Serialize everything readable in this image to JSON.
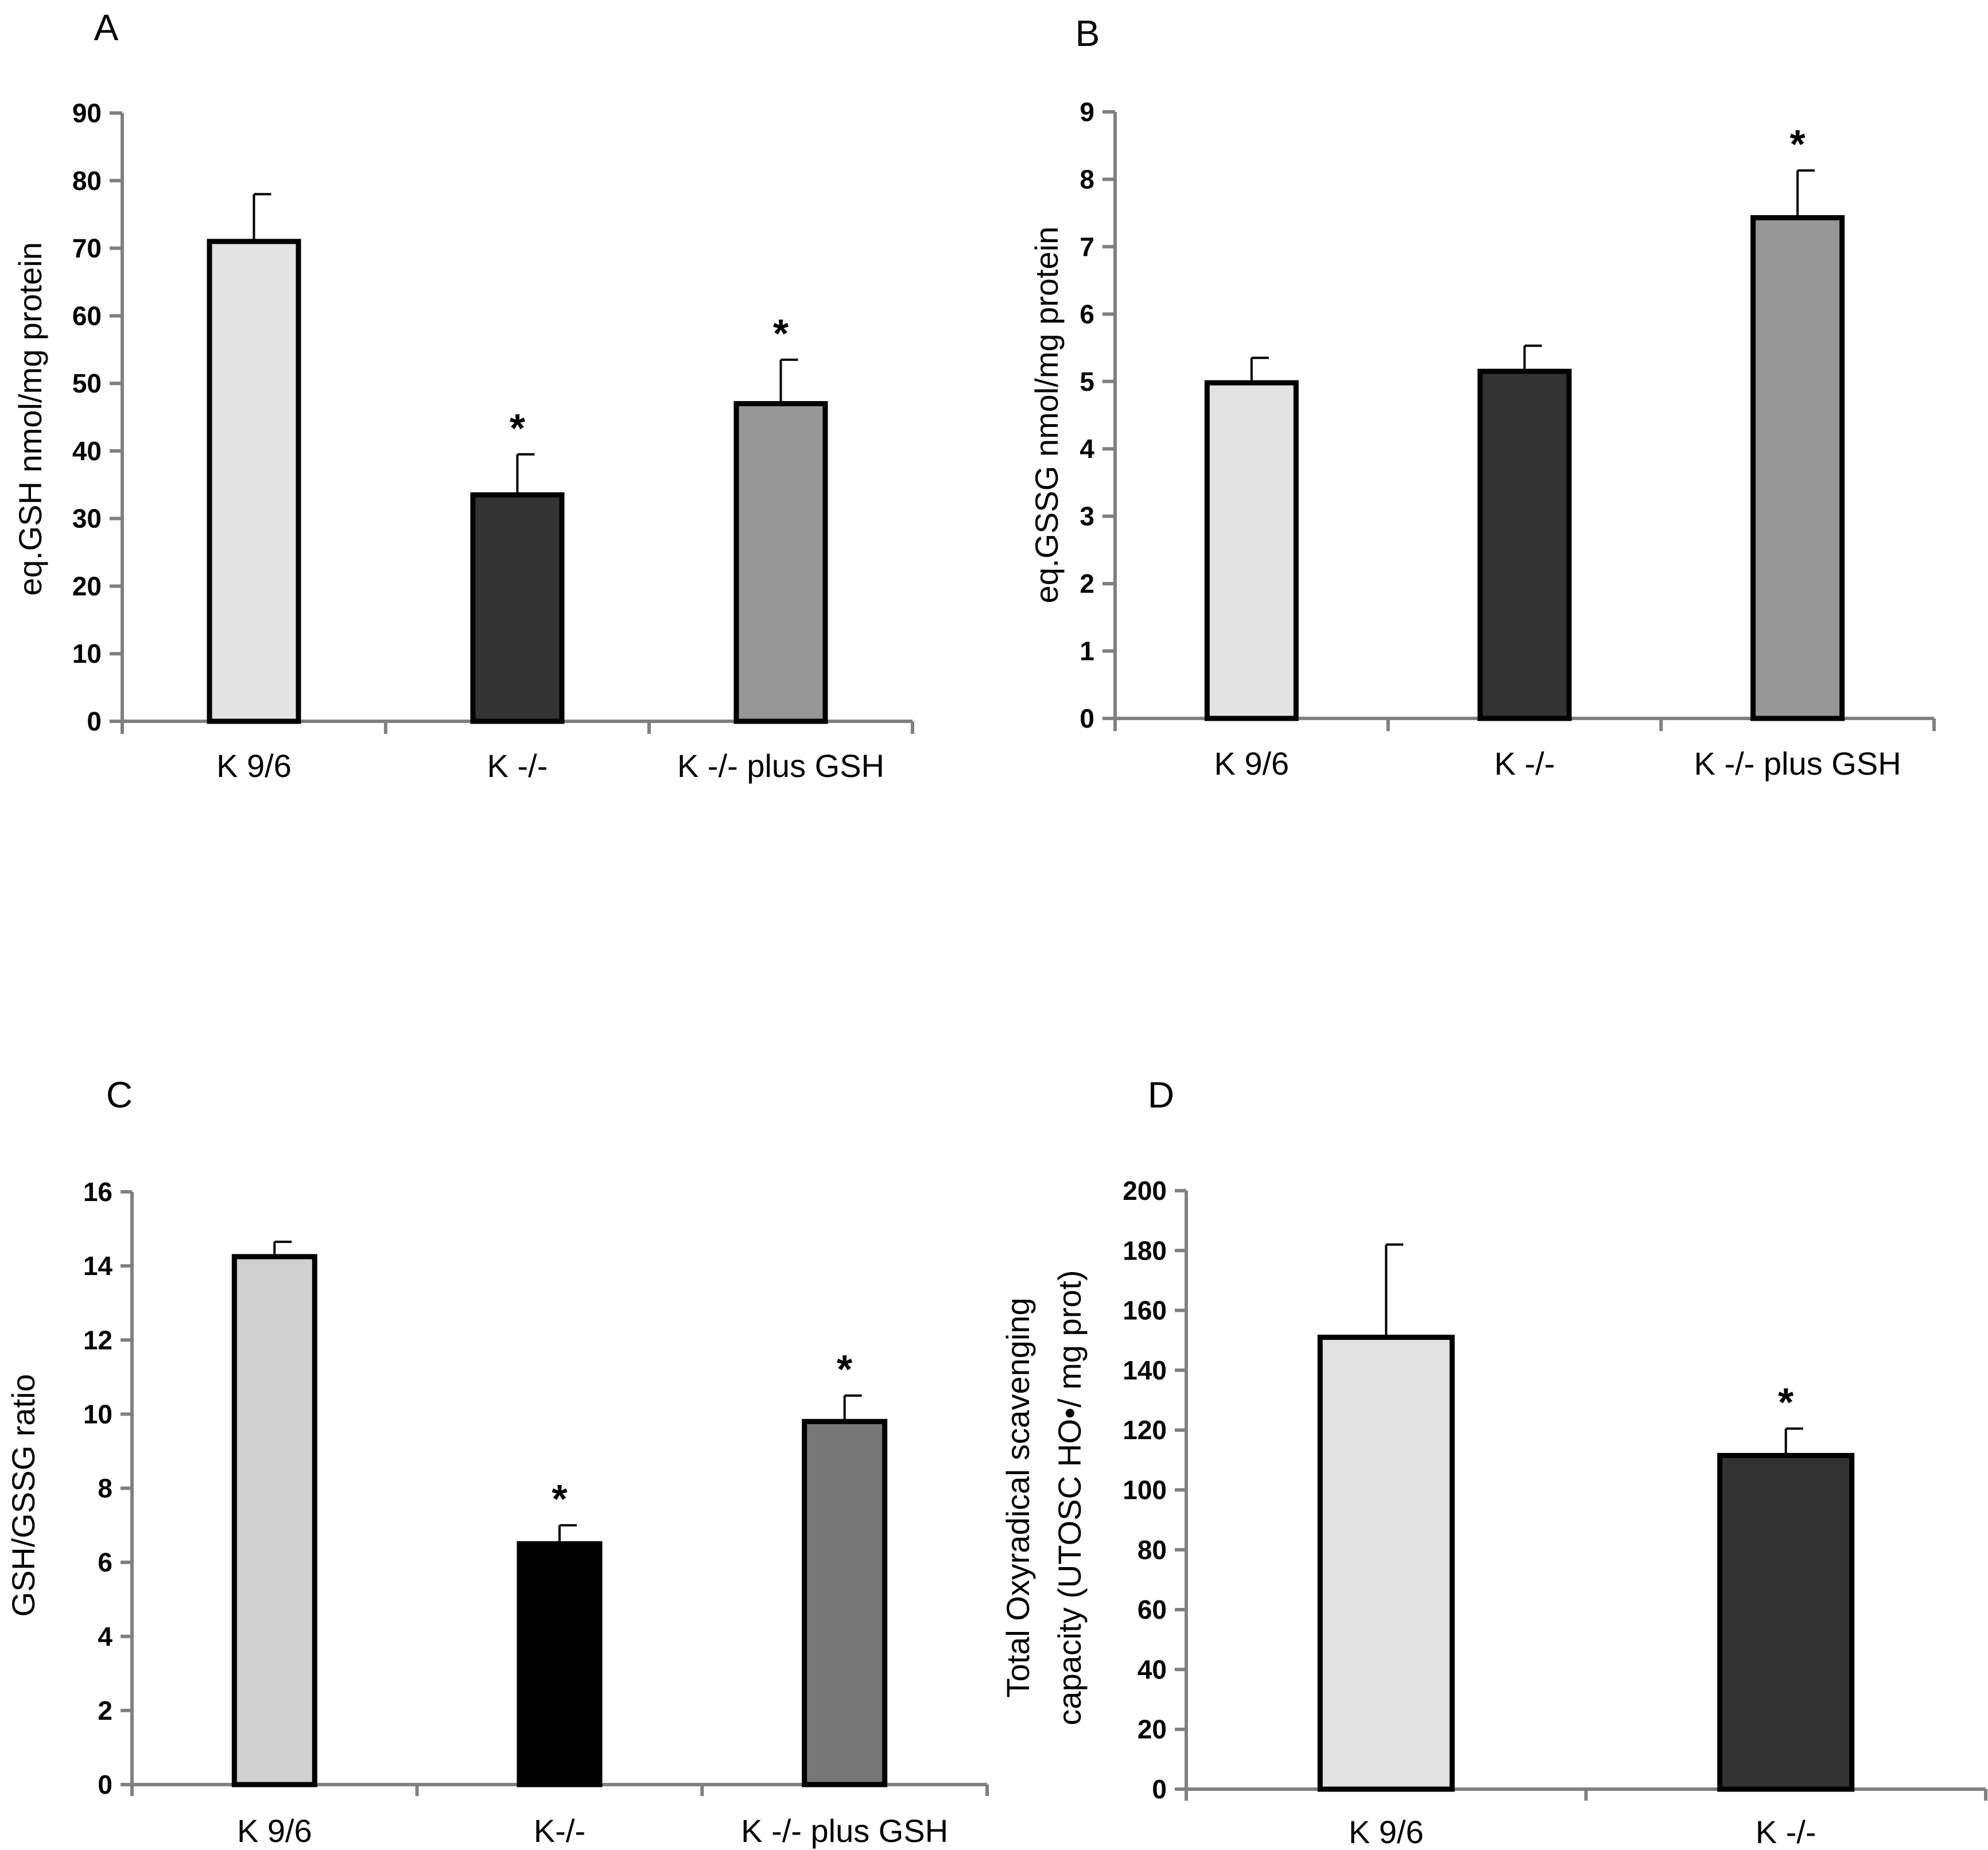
{
  "chart_data": [
    {
      "type": "bar",
      "panel": "A",
      "categories": [
        "K 9/6",
        "K -/-",
        "K -/- plus GSH"
      ],
      "values": [
        71,
        33.5,
        47
      ],
      "errors": [
        7,
        6,
        6.5
      ],
      "significance": [
        "",
        "*",
        "*"
      ],
      "colors": [
        "#e3e3e3",
        "#333333",
        "#979797"
      ],
      "xlabel": "",
      "ylabel": "eq.GSH nmol/mg protein",
      "ylim": [
        0,
        90
      ],
      "yticks": [
        0,
        10,
        20,
        30,
        40,
        50,
        60,
        70,
        80,
        90
      ],
      "grid": false
    },
    {
      "type": "bar",
      "panel": "B",
      "categories": [
        "K 9/6",
        "K -/-",
        "K -/- plus GSH"
      ],
      "values": [
        4.98,
        5.15,
        7.43
      ],
      "errors": [
        0.37,
        0.38,
        0.7
      ],
      "significance": [
        "",
        "",
        "*"
      ],
      "colors": [
        "#e3e3e3",
        "#333333",
        "#979797"
      ],
      "xlabel": "",
      "ylabel": "eq.GSSG nmol/mg protein",
      "ylim": [
        0,
        9
      ],
      "yticks": [
        0,
        1,
        2,
        3,
        4,
        5,
        6,
        7,
        8,
        9
      ],
      "grid": false
    },
    {
      "type": "bar",
      "panel": "C",
      "categories": [
        "K 9/6",
        "K-/-",
        "K -/- plus GSH"
      ],
      "values": [
        14.25,
        6.5,
        9.8
      ],
      "errors": [
        0.4,
        0.5,
        0.7
      ],
      "significance": [
        "",
        "*",
        "*"
      ],
      "colors": [
        "#d0d0d0",
        "#000000",
        "#777777"
      ],
      "xlabel": "",
      "ylabel": "GSH/GSSG ratio",
      "ylim": [
        0,
        16
      ],
      "yticks": [
        0,
        2,
        4,
        6,
        8,
        10,
        12,
        14,
        16
      ],
      "grid": false
    },
    {
      "type": "bar",
      "panel": "D",
      "categories": [
        "K 9/6",
        "K -/-"
      ],
      "values": [
        151,
        111.5
      ],
      "errors": [
        31,
        9
      ],
      "significance": [
        "",
        "*"
      ],
      "colors": [
        "#e3e3e3",
        "#333333"
      ],
      "xlabel": "",
      "ylabel": "Total Oxyradical scavenging capacity (UTOSC HO•/ mg prot)",
      "ylabel_lines": [
        "Total Oxyradical scavenging",
        "capacity (UTOSC HO•/ mg prot)"
      ],
      "ylim": [
        0,
        200
      ],
      "yticks": [
        0,
        20,
        40,
        60,
        80,
        100,
        120,
        140,
        160,
        180,
        200
      ],
      "grid": false
    }
  ]
}
